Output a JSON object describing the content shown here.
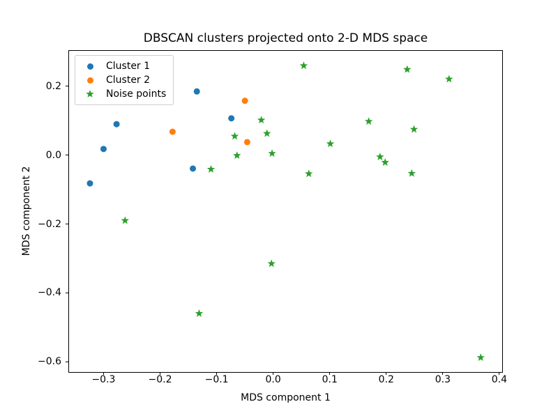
{
  "chart_data": {
    "type": "scatter",
    "title": "DBSCAN clusters projected onto 2-D MDS space",
    "xlabel": "MDS component 1",
    "ylabel": "MDS component 2",
    "xlim": [
      -0.361,
      0.405
    ],
    "ylim": [
      -0.63,
      0.303
    ],
    "x_ticks": [
      -0.3,
      -0.2,
      -0.1,
      0.0,
      0.1,
      0.2,
      0.3,
      0.4
    ],
    "x_tick_labels": [
      "−0.3",
      "−0.2",
      "−0.1",
      "0.0",
      "0.1",
      "0.2",
      "0.3",
      "0.4"
    ],
    "y_ticks": [
      0.2,
      0.0,
      -0.2,
      -0.4,
      -0.6
    ],
    "y_tick_labels": [
      "0.2",
      "0.0",
      "−0.2",
      "−0.4",
      "−0.6"
    ],
    "grid": false,
    "legend_position": "upper-left",
    "background_color": "#ffffff",
    "series": [
      {
        "name": "Cluster 1",
        "marker": "circle",
        "color": "#1f77b4",
        "points": [
          [
            -0.135,
            0.185
          ],
          [
            -0.277,
            0.09
          ],
          [
            -0.3,
            0.018
          ],
          [
            -0.074,
            0.107
          ],
          [
            -0.142,
            -0.039
          ],
          [
            -0.324,
            -0.082
          ]
        ]
      },
      {
        "name": "Cluster 2",
        "marker": "circle",
        "color": "#ff7f0e",
        "points": [
          [
            -0.05,
            0.158
          ],
          [
            -0.178,
            0.068
          ],
          [
            -0.046,
            0.038
          ]
        ]
      },
      {
        "name": "Noise points",
        "marker": "star",
        "color": "#2ca02c",
        "points": [
          [
            0.054,
            0.26
          ],
          [
            0.237,
            0.249
          ],
          [
            0.311,
            0.221
          ],
          [
            -0.021,
            0.102
          ],
          [
            0.169,
            0.098
          ],
          [
            0.249,
            0.075
          ],
          [
            -0.011,
            0.063
          ],
          [
            -0.068,
            0.055
          ],
          [
            0.101,
            0.033
          ],
          [
            -0.002,
            0.005
          ],
          [
            -0.064,
            -0.001
          ],
          [
            0.189,
            -0.005
          ],
          [
            0.198,
            -0.021
          ],
          [
            -0.11,
            -0.041
          ],
          [
            0.063,
            -0.054
          ],
          [
            0.245,
            -0.053
          ],
          [
            -0.262,
            -0.19
          ],
          [
            -0.003,
            -0.315
          ],
          [
            -0.131,
            -0.46
          ],
          [
            0.367,
            -0.588
          ]
        ]
      }
    ]
  }
}
